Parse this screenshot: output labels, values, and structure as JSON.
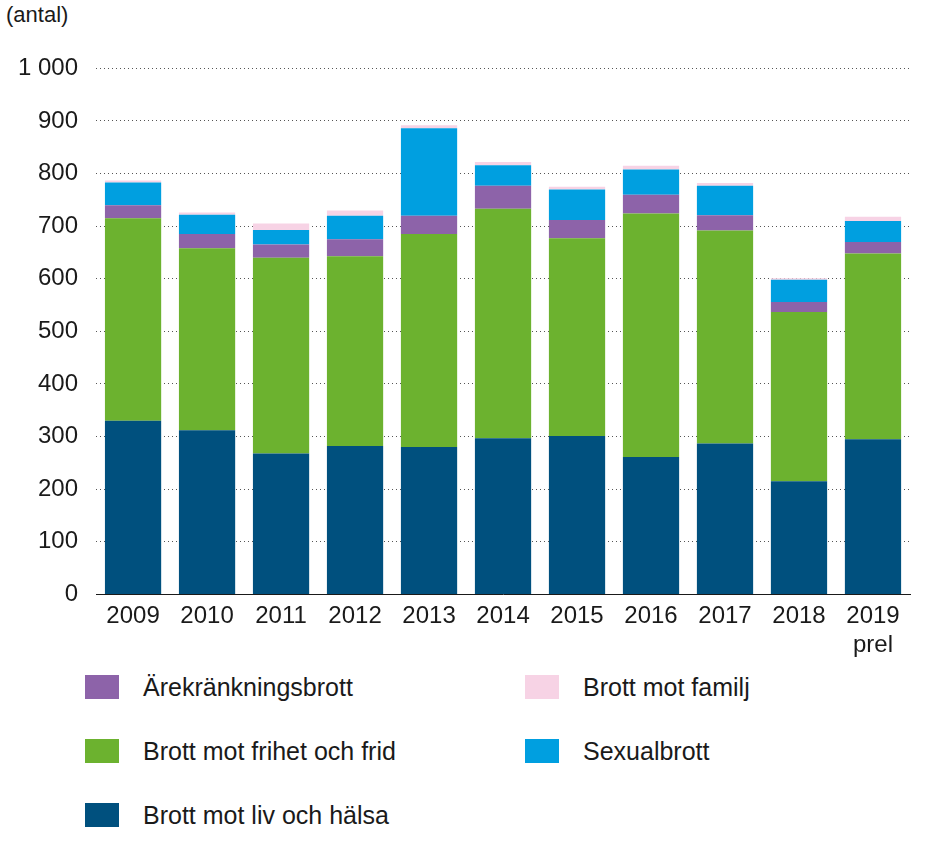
{
  "chart_data": {
    "type": "bar",
    "stacked": true,
    "grid": true,
    "legend": "bottom",
    "y_label": "(antal)",
    "categories": [
      "2009",
      "2010",
      "2011",
      "2012",
      "2013",
      "2014",
      "2015",
      "2016",
      "2017",
      "2018",
      "2019 prel"
    ],
    "series": [
      {
        "name": "Brott mot liv och hälsa",
        "color": "#00507e",
        "values": [
          330,
          312,
          268,
          282,
          280,
          297,
          301,
          261,
          287,
          215,
          295
        ]
      },
      {
        "name": "Brott mot frihet och frid",
        "color": "#6cb22f",
        "values": [
          385,
          346,
          372,
          361,
          405,
          436,
          376,
          463,
          405,
          322,
          353
        ]
      },
      {
        "name": "Ärekränkningsbrott",
        "color": "#8d63a9",
        "values": [
          25,
          27,
          25,
          32,
          35,
          44,
          35,
          36,
          29,
          19,
          22
        ]
      },
      {
        "name": "Sexualbrott",
        "color": "#009fe0",
        "values": [
          43,
          37,
          28,
          45,
          166,
          39,
          58,
          48,
          56,
          42,
          40
        ]
      },
      {
        "name": "Brott mot familj",
        "color": "#f7d3e5",
        "values": [
          4,
          4,
          12,
          10,
          6,
          6,
          5,
          7,
          5,
          3,
          8
        ]
      }
    ],
    "ylim": [
      0,
      1000
    ],
    "yticks": [
      0,
      100,
      200,
      300,
      400,
      500,
      600,
      700,
      800,
      900,
      {
        "value": 1000,
        "label": "1 000"
      }
    ]
  }
}
